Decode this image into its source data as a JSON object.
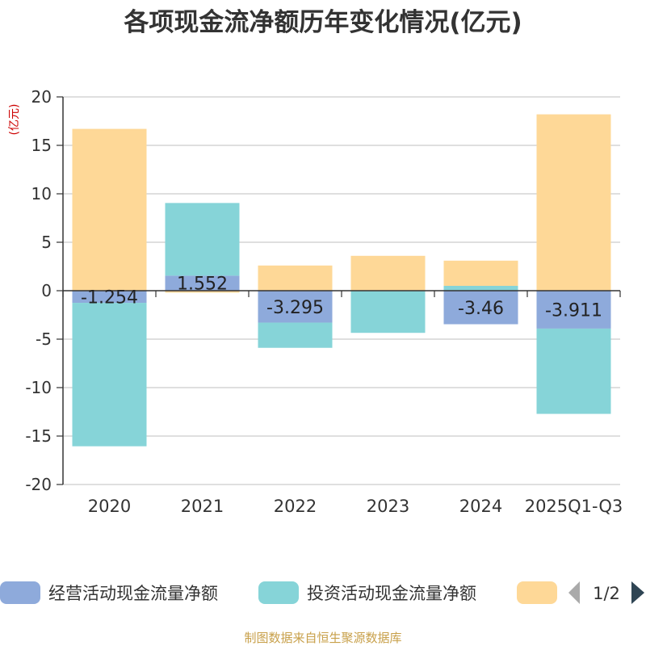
{
  "chart_data": {
    "type": "bar",
    "stacked": true,
    "title": "各项现金流净额历年变化情况(亿元)",
    "ylabel": "(亿元)",
    "xlabel": "",
    "ylim": [
      -20,
      20
    ],
    "yticks": [
      20,
      15,
      10,
      5,
      0,
      -5,
      -10,
      -15,
      -20
    ],
    "grid": true,
    "categories": [
      "2020",
      "2021",
      "2022",
      "2023",
      "2024",
      "2025Q1-Q3"
    ],
    "series": [
      {
        "name": "经营活动现金流量净额",
        "color": "#8eaadb",
        "values": [
          -1.254,
          1.552,
          -3.295,
          -0.05,
          -3.46,
          -3.911
        ],
        "labels": [
          "-1.254",
          "1.552",
          "-3.295",
          "",
          "-3.46",
          "-3.911"
        ]
      },
      {
        "name": "投资活动现金流量净额",
        "color": "#86d4d8",
        "values": [
          -14.8,
          7.5,
          -2.6,
          -4.3,
          0.5,
          -8.8
        ],
        "labels": [
          "",
          "",
          "",
          "",
          "",
          ""
        ]
      },
      {
        "name": "",
        "color": "#fed897",
        "values": [
          16.7,
          -0.2,
          2.6,
          3.6,
          2.6,
          18.2
        ],
        "labels": [
          "",
          "",
          "",
          "",
          "",
          ""
        ]
      }
    ],
    "legend_position": "bottom",
    "legend_page": "1/2"
  },
  "source_text": "制图数据来自恒生聚源数据库"
}
